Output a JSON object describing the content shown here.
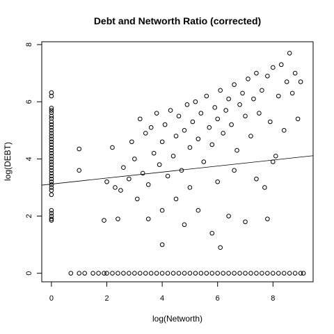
{
  "chart_data": {
    "type": "scatter",
    "title": "Debt and Networth Ratio (corrected)",
    "xlabel": "log(Networth)",
    "ylabel": "log(DEBT)",
    "xlim": [
      -0.35,
      9.45
    ],
    "ylim": [
      -0.3,
      8.1
    ],
    "xticks": [
      0,
      2,
      4,
      6,
      8
    ],
    "yticks": [
      0,
      2,
      4,
      6,
      8
    ],
    "grid": false,
    "point_style": "open circle",
    "regression_line": {
      "intercept": 3.12,
      "slope": 0.105
    },
    "points": [
      [
        0,
        6.32
      ],
      [
        0,
        6.2
      ],
      [
        0,
        5.78
      ],
      [
        0,
        5.7
      ],
      [
        0,
        5.62
      ],
      [
        0,
        5.5
      ],
      [
        0,
        5.42
      ],
      [
        0,
        5.3
      ],
      [
        0,
        5.2
      ],
      [
        0,
        5.1
      ],
      [
        0,
        5.0
      ],
      [
        0,
        4.9
      ],
      [
        0,
        4.8
      ],
      [
        0,
        4.7
      ],
      [
        0,
        4.6
      ],
      [
        0,
        4.5
      ],
      [
        0,
        4.4
      ],
      [
        0,
        4.3
      ],
      [
        0,
        4.2
      ],
      [
        0,
        4.1
      ],
      [
        0,
        4.0
      ],
      [
        0,
        3.9
      ],
      [
        0,
        3.8
      ],
      [
        0,
        3.7
      ],
      [
        0,
        3.6
      ],
      [
        0,
        3.5
      ],
      [
        0,
        3.4
      ],
      [
        0,
        3.3
      ],
      [
        0,
        3.2
      ],
      [
        0,
        3.1
      ],
      [
        0,
        3.0
      ],
      [
        0,
        2.9
      ],
      [
        0,
        2.75
      ],
      [
        0,
        2.2
      ],
      [
        0,
        2.1
      ],
      [
        0,
        2.0
      ],
      [
        0,
        1.9
      ],
      [
        0,
        1.85
      ],
      [
        0.7,
        0
      ],
      [
        1.0,
        0
      ],
      [
        1.2,
        0
      ],
      [
        1.5,
        0
      ],
      [
        1.7,
        0
      ],
      [
        1.9,
        0
      ],
      [
        2.0,
        0
      ],
      [
        2.2,
        0
      ],
      [
        2.4,
        0
      ],
      [
        2.6,
        0
      ],
      [
        2.8,
        0
      ],
      [
        3.0,
        0
      ],
      [
        3.2,
        0
      ],
      [
        3.4,
        0
      ],
      [
        3.6,
        0
      ],
      [
        3.8,
        0
      ],
      [
        4.0,
        0
      ],
      [
        4.2,
        0
      ],
      [
        4.4,
        0
      ],
      [
        4.6,
        0
      ],
      [
        4.8,
        0
      ],
      [
        5.0,
        0
      ],
      [
        5.2,
        0
      ],
      [
        5.4,
        0
      ],
      [
        5.6,
        0
      ],
      [
        5.8,
        0
      ],
      [
        6.0,
        0
      ],
      [
        6.2,
        0
      ],
      [
        6.4,
        0
      ],
      [
        6.6,
        0
      ],
      [
        6.8,
        0
      ],
      [
        7.0,
        0
      ],
      [
        7.2,
        0
      ],
      [
        7.4,
        0
      ],
      [
        7.6,
        0
      ],
      [
        7.8,
        0
      ],
      [
        8.0,
        0
      ],
      [
        8.2,
        0
      ],
      [
        8.4,
        0
      ],
      [
        8.6,
        0
      ],
      [
        8.8,
        0
      ],
      [
        9.0,
        0
      ],
      [
        9.1,
        0
      ],
      [
        1.0,
        4.35
      ],
      [
        1.0,
        3.6
      ],
      [
        1.9,
        1.85
      ],
      [
        2.0,
        3.2
      ],
      [
        2.2,
        4.4
      ],
      [
        2.3,
        3.0
      ],
      [
        2.5,
        2.9
      ],
      [
        2.4,
        1.9
      ],
      [
        2.6,
        3.7
      ],
      [
        2.8,
        3.3
      ],
      [
        2.9,
        4.6
      ],
      [
        3.0,
        4.0
      ],
      [
        3.1,
        2.6
      ],
      [
        3.2,
        5.4
      ],
      [
        3.3,
        3.5
      ],
      [
        3.4,
        4.9
      ],
      [
        3.5,
        3.1
      ],
      [
        3.6,
        5.1
      ],
      [
        3.7,
        4.2
      ],
      [
        3.8,
        5.6
      ],
      [
        3.9,
        3.8
      ],
      [
        4.0,
        4.6
      ],
      [
        4.0,
        2.2
      ],
      [
        4.1,
        5.2
      ],
      [
        4.2,
        3.4
      ],
      [
        4.3,
        5.7
      ],
      [
        4.4,
        4.1
      ],
      [
        4.5,
        4.8
      ],
      [
        4.6,
        5.5
      ],
      [
        4.7,
        3.6
      ],
      [
        4.8,
        5.0
      ],
      [
        4.9,
        5.9
      ],
      [
        5.0,
        4.4
      ],
      [
        5.1,
        5.3
      ],
      [
        5.2,
        6.0
      ],
      [
        5.3,
        4.7
      ],
      [
        5.4,
        5.6
      ],
      [
        5.5,
        3.9
      ],
      [
        5.6,
        6.2
      ],
      [
        5.7,
        5.1
      ],
      [
        5.8,
        4.5
      ],
      [
        5.9,
        5.8
      ],
      [
        6.0,
        5.4
      ],
      [
        6.1,
        6.4
      ],
      [
        6.2,
        4.9
      ],
      [
        6.3,
        5.7
      ],
      [
        6.4,
        6.1
      ],
      [
        6.5,
        5.2
      ],
      [
        6.6,
        6.6
      ],
      [
        6.7,
        4.3
      ],
      [
        6.8,
        5.9
      ],
      [
        6.9,
        6.3
      ],
      [
        7.0,
        5.5
      ],
      [
        7.1,
        6.8
      ],
      [
        7.2,
        4.8
      ],
      [
        7.3,
        6.1
      ],
      [
        7.4,
        7.0
      ],
      [
        7.5,
        5.6
      ],
      [
        7.6,
        6.4
      ],
      [
        7.7,
        3.0
      ],
      [
        7.8,
        6.9
      ],
      [
        7.9,
        5.3
      ],
      [
        8.0,
        7.2
      ],
      [
        8.1,
        4.1
      ],
      [
        8.2,
        6.2
      ],
      [
        8.3,
        7.3
      ],
      [
        8.4,
        5.0
      ],
      [
        8.5,
        6.7
      ],
      [
        8.6,
        7.7
      ],
      [
        8.7,
        6.3
      ],
      [
        8.8,
        7.0
      ],
      [
        8.9,
        5.4
      ],
      [
        9.0,
        6.7
      ],
      [
        3.5,
        1.9
      ],
      [
        4.0,
        1.0
      ],
      [
        5.8,
        1.4
      ],
      [
        6.1,
        0.9
      ],
      [
        4.8,
        1.7
      ],
      [
        5.3,
        2.2
      ],
      [
        6.4,
        2.0
      ],
      [
        7.0,
        1.8
      ],
      [
        7.8,
        1.9
      ],
      [
        4.5,
        2.6
      ],
      [
        5.0,
        3.0
      ],
      [
        6.0,
        3.2
      ],
      [
        6.6,
        3.6
      ],
      [
        7.4,
        3.3
      ],
      [
        8.0,
        3.9
      ]
    ]
  }
}
